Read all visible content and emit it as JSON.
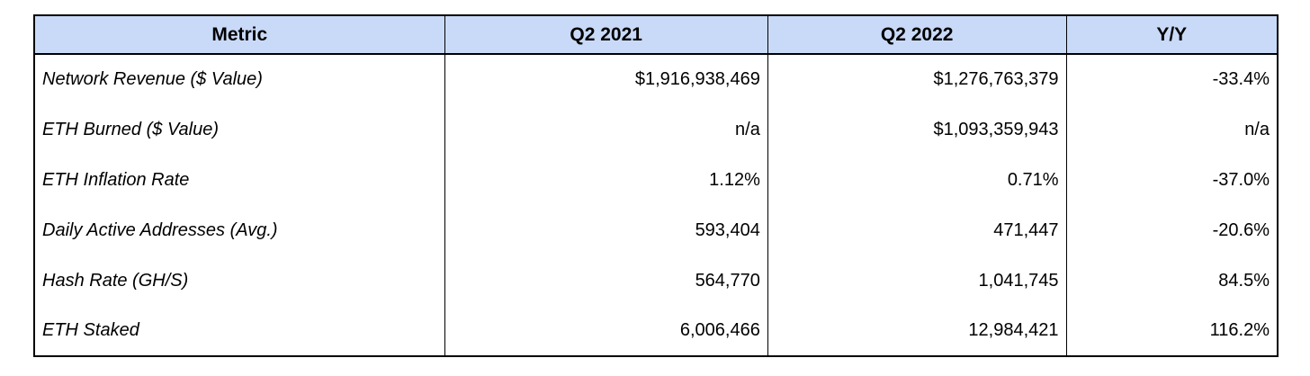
{
  "header_bg": "#c9daf8",
  "table": {
    "columns": [
      {
        "label": "Metric"
      },
      {
        "label": "Q2 2021"
      },
      {
        "label": "Q2 2022"
      },
      {
        "label": "Y/Y"
      }
    ],
    "rows": [
      {
        "metric": "Network Revenue ($ Value)",
        "q2_2021": "$1,916,938,469",
        "q2_2022": "$1,276,763,379",
        "yy": "-33.4%"
      },
      {
        "metric": "ETH Burned ($ Value)",
        "q2_2021": "n/a",
        "q2_2022": "$1,093,359,943",
        "yy": "n/a"
      },
      {
        "metric": "ETH Inflation Rate",
        "q2_2021": "1.12%",
        "q2_2022": "0.71%",
        "yy": "-37.0%"
      },
      {
        "metric": "Daily Active Addresses (Avg.)",
        "q2_2021": "593,404",
        "q2_2022": "471,447",
        "yy": "-20.6%"
      },
      {
        "metric": "Hash Rate (GH/S)",
        "q2_2021": "564,770",
        "q2_2022": "1,041,745",
        "yy": "84.5%"
      },
      {
        "metric": "ETH Staked",
        "q2_2021": "6,006,466",
        "q2_2022": "12,984,421",
        "yy": "116.2%"
      }
    ]
  }
}
